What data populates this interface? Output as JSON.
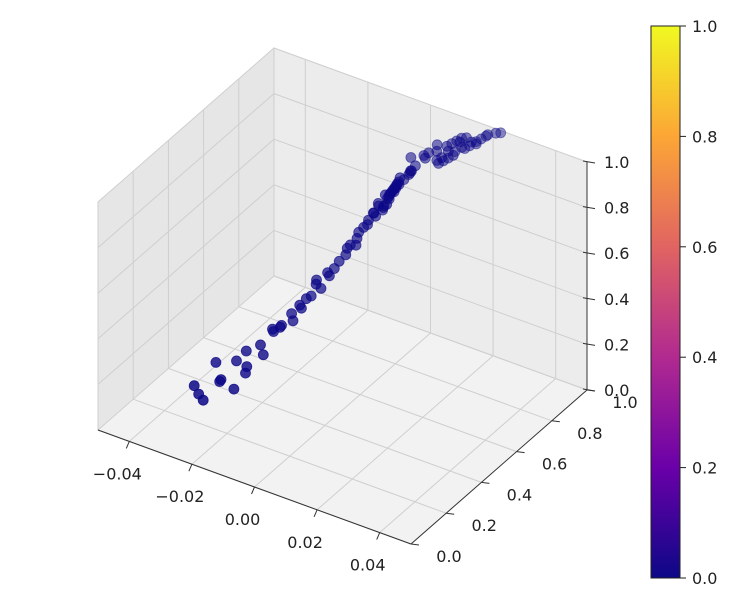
{
  "chart_data": {
    "type": "scatter",
    "projection": "3d",
    "grid": true,
    "title": "",
    "xlabel": "",
    "ylabel": "",
    "zlabel": "",
    "x_ticks": [
      "−0.04",
      "−0.02",
      "0.00",
      "0.02",
      "0.04"
    ],
    "y_ticks": [
      "0.0",
      "0.2",
      "0.4",
      "0.6",
      "0.8",
      "1.0"
    ],
    "z_ticks": [
      "0.0",
      "0.2",
      "0.4",
      "0.6",
      "0.8",
      "1.0"
    ],
    "xlim": [
      -0.05,
      0.05
    ],
    "ylim": [
      0,
      1
    ],
    "zlim": [
      0,
      1
    ],
    "colormap": "plasma",
    "colorbar": {
      "range": [
        0,
        1
      ],
      "ticks": [
        "0.0",
        "0.2",
        "0.4",
        "0.6",
        "0.8",
        "1.0"
      ],
      "colors": [
        "#0d0887",
        "#6a00a8",
        "#b12a90",
        "#e16462",
        "#fca636",
        "#f0f921"
      ]
    },
    "point_color": "#0d0887",
    "x": [
      -0.024,
      -0.015,
      -0.032,
      -0.008,
      -0.019,
      -0.028,
      -0.003,
      -0.012,
      -0.021,
      -0.035,
      -0.006,
      -0.017,
      -0.026,
      -0.01,
      -0.002,
      -0.024,
      -0.014,
      -0.031,
      -0.007,
      -0.02,
      -0.001,
      -0.012,
      -0.027,
      -0.018,
      -0.004,
      -0.033,
      -0.011,
      -0.022,
      -0.016,
      -0.009,
      0.001,
      -0.005,
      -0.013,
      0.004,
      -0.007,
      -0.001,
      0.002,
      -0.01,
      0.003,
      0.0,
      0.005,
      -0.003,
      0.006,
      0.001,
      0.002,
      0.003,
      0.004,
      0.005,
      0.006,
      0.002,
      0.001,
      0.003,
      0.004,
      0.005,
      -0.001,
      0.008,
      0.004,
      0.003,
      0.002,
      0.007,
      0.003,
      0.004,
      0.001,
      0.006,
      0.005,
      0.002,
      0.007,
      0.009,
      0.006,
      0.002,
      0.003,
      0.005,
      0.011,
      0.009,
      0.008,
      0.01,
      0.012,
      0.014,
      0.015,
      0.013,
      0.012,
      0.011,
      0.013,
      0.016,
      0.015,
      0.018,
      0.017,
      0.016,
      0.019,
      0.02,
      0.017,
      0.022,
      0.014,
      0.018,
      0.015,
      0.012,
      0.014,
      0.013,
      0.011,
      0.02,
      0.023
    ],
    "y": [
      0.38,
      0.42,
      0.35,
      0.52,
      0.44,
      0.3,
      0.63,
      0.48,
      0.33,
      0.28,
      0.56,
      0.41,
      0.36,
      0.5,
      0.58,
      0.31,
      0.46,
      0.26,
      0.55,
      0.39,
      0.61,
      0.47,
      0.29,
      0.37,
      0.59,
      0.27,
      0.49,
      0.34,
      0.43,
      0.51,
      0.63,
      0.57,
      0.45,
      0.66,
      0.54,
      0.6,
      0.64,
      0.53,
      0.65,
      0.62,
      0.68,
      0.58,
      0.7,
      0.66,
      0.67,
      0.69,
      0.68,
      0.71,
      0.72,
      0.7,
      0.67,
      0.71,
      0.72,
      0.73,
      0.66,
      0.75,
      0.74,
      0.73,
      0.72,
      0.76,
      0.74,
      0.75,
      0.71,
      0.77,
      0.76,
      0.73,
      0.79,
      0.81,
      0.78,
      0.74,
      0.75,
      0.8,
      0.84,
      0.83,
      0.82,
      0.86,
      0.88,
      0.9,
      0.91,
      0.87,
      0.85,
      0.84,
      0.89,
      0.92,
      0.9,
      0.94,
      0.93,
      0.91,
      0.95,
      0.96,
      0.92,
      0.98,
      0.89,
      0.94,
      0.91,
      0.86,
      0.88,
      0.87,
      0.85,
      0.97,
      0.99
    ],
    "z": [
      0.22,
      0.35,
      0.15,
      0.48,
      0.3,
      0.12,
      0.62,
      0.4,
      0.2,
      0.08,
      0.55,
      0.32,
      0.18,
      0.45,
      0.66,
      0.1,
      0.38,
      0.05,
      0.52,
      0.26,
      0.7,
      0.42,
      0.14,
      0.24,
      0.6,
      0.06,
      0.44,
      0.16,
      0.33,
      0.5,
      0.75,
      0.58,
      0.36,
      0.8,
      0.54,
      0.68,
      0.78,
      0.5,
      0.82,
      0.72,
      0.85,
      0.64,
      0.88,
      0.76,
      0.79,
      0.83,
      0.8,
      0.86,
      0.9,
      0.77,
      0.74,
      0.81,
      0.84,
      0.87,
      0.7,
      0.92,
      0.85,
      0.82,
      0.79,
      0.9,
      0.81,
      0.84,
      0.74,
      0.88,
      0.86,
      0.78,
      0.91,
      0.94,
      0.89,
      0.8,
      0.82,
      0.93,
      0.96,
      0.95,
      0.94,
      0.97,
      0.96,
      0.98,
      0.99,
      0.95,
      0.93,
      0.92,
      0.97,
      0.99,
      0.98,
      0.96,
      0.97,
      0.95,
      0.98,
      0.99,
      0.96,
      1.0,
      0.94,
      0.97,
      0.95,
      0.91,
      0.93,
      0.92,
      0.9,
      0.99,
      1.0
    ]
  }
}
